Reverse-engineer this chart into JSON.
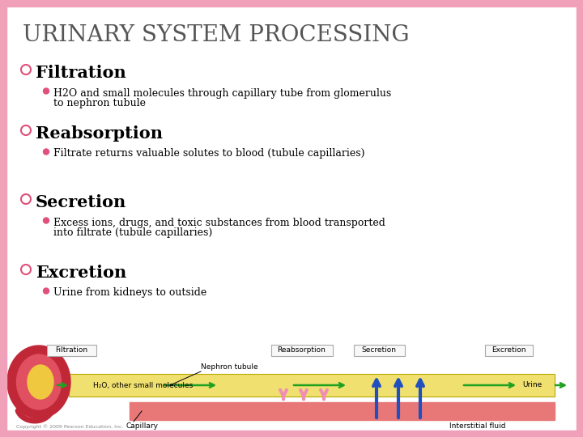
{
  "title": "URINARY SYSTEM PROCESSING",
  "title_fontsize": 20,
  "title_color": "#555555",
  "title_font": "serif",
  "background_color": "#ffffff",
  "border_color": "#f0a0b8",
  "border_width": 8,
  "bullet_color": "#e0507a",
  "sections": [
    {
      "heading": "Filtration",
      "heading_fontsize": 15,
      "bullet": "H2O and small molecules through capillary tube from glomerulus\nto nephron tubule"
    },
    {
      "heading": "Reabsorption",
      "heading_fontsize": 15,
      "bullet": "Filtrate returns valuable solutes to blood (tubule capillaries)"
    },
    {
      "heading": "Secretion",
      "heading_fontsize": 15,
      "bullet": "Excess ions, drugs, and toxic substances from blood transported\ninto filtrate (tubule capillaries)"
    },
    {
      "heading": "Excretion",
      "heading_fontsize": 15,
      "bullet": "Urine from kidneys to outside"
    }
  ],
  "arrow_green": "#20a020",
  "arrow_pink": "#f090b0",
  "arrow_blue": "#2050c0",
  "label_fontsize": 6.5,
  "copyright": "Copyright © 2009 Pearson Education, Inc."
}
